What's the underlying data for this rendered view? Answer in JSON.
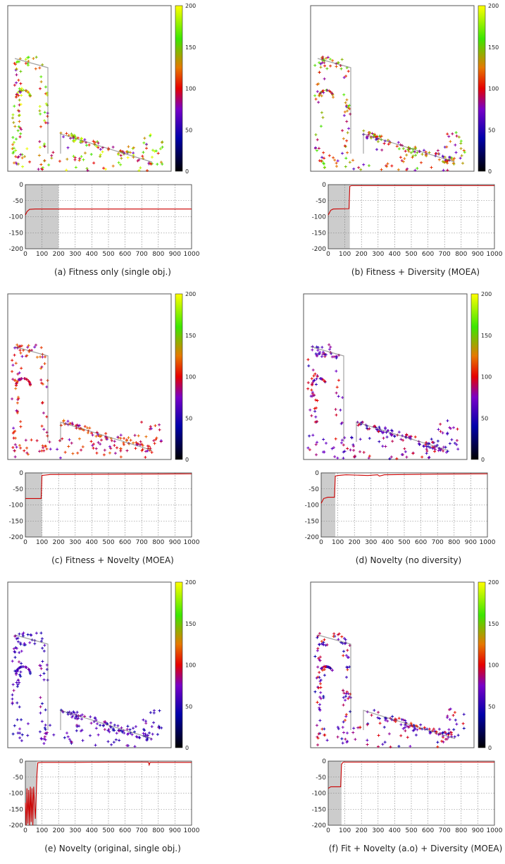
{
  "chart_data": [
    {
      "id": "a",
      "type": "scatter+line",
      "caption": "(a) Fitness only (single obj.)",
      "colorbar": {
        "min": 0,
        "max": 200,
        "ticks": [
          0,
          50,
          100,
          150,
          200
        ]
      },
      "point_color_range": [
        70,
        200
      ],
      "line": {
        "xlim": [
          0,
          1000
        ],
        "ylim": [
          -200,
          0
        ],
        "xticks": [
          0,
          100,
          200,
          300,
          400,
          500,
          600,
          700,
          800,
          900,
          1000
        ],
        "yticks": [
          0,
          -50,
          -100,
          -150,
          -200
        ],
        "shaded_until": 200,
        "points": [
          [
            0,
            -95
          ],
          [
            10,
            -84
          ],
          [
            25,
            -77
          ],
          [
            60,
            -76
          ],
          [
            1000,
            -76
          ]
        ]
      }
    },
    {
      "id": "b",
      "type": "scatter+line",
      "caption": "(b) Fitness + Diversity (MOEA)",
      "colorbar": {
        "min": 0,
        "max": 200,
        "ticks": [
          0,
          50,
          100,
          150,
          200
        ]
      },
      "point_color_range": [
        60,
        170
      ],
      "line": {
        "xlim": [
          0,
          1000
        ],
        "ylim": [
          -200,
          0
        ],
        "xticks": [
          0,
          100,
          200,
          300,
          400,
          500,
          600,
          700,
          800,
          900,
          1000
        ],
        "yticks": [
          0,
          -50,
          -100,
          -150,
          -200
        ],
        "shaded_until": 130,
        "points": [
          [
            0,
            -95
          ],
          [
            15,
            -80
          ],
          [
            30,
            -76
          ],
          [
            125,
            -75
          ],
          [
            130,
            -5
          ],
          [
            140,
            -3
          ],
          [
            1000,
            -3
          ]
        ]
      }
    },
    {
      "id": "c",
      "type": "scatter+line",
      "caption": "(c) Fitness + Novelty (MOEA)",
      "colorbar": {
        "min": 0,
        "max": 200,
        "ticks": [
          0,
          50,
          100,
          150,
          200
        ]
      },
      "point_color_range": [
        70,
        125
      ],
      "line": {
        "xlim": [
          0,
          1000
        ],
        "ylim": [
          -200,
          0
        ],
        "xticks": [
          0,
          100,
          200,
          300,
          400,
          500,
          600,
          700,
          800,
          900,
          1000
        ],
        "yticks": [
          0,
          -50,
          -100,
          -150,
          -200
        ],
        "shaded_until": 100,
        "points": [
          [
            0,
            -80
          ],
          [
            95,
            -80
          ],
          [
            100,
            -8
          ],
          [
            150,
            -5
          ],
          [
            1000,
            -3
          ]
        ]
      }
    },
    {
      "id": "d",
      "type": "scatter+line",
      "caption": "(d) Novelty (no diversity)",
      "colorbar": {
        "min": 0,
        "max": 200,
        "ticks": [
          0,
          50,
          100,
          150,
          200
        ]
      },
      "point_color_range": [
        45,
        105
      ],
      "line": {
        "xlim": [
          0,
          1000
        ],
        "ylim": [
          -200,
          0
        ],
        "xticks": [
          0,
          100,
          200,
          300,
          400,
          500,
          600,
          700,
          800,
          900,
          1000
        ],
        "yticks": [
          0,
          -50,
          -100,
          -150,
          -200
        ],
        "shaded_until": 85,
        "points": [
          [
            0,
            -95
          ],
          [
            15,
            -80
          ],
          [
            40,
            -76
          ],
          [
            80,
            -76
          ],
          [
            85,
            -10
          ],
          [
            100,
            -8
          ],
          [
            150,
            -6
          ],
          [
            280,
            -8
          ],
          [
            340,
            -6
          ],
          [
            350,
            -10
          ],
          [
            380,
            -6
          ],
          [
            500,
            -5
          ],
          [
            700,
            -4
          ],
          [
            1000,
            -3
          ]
        ]
      }
    },
    {
      "id": "e",
      "type": "scatter+line",
      "caption": "(e) Novelty (original, single obj.)",
      "colorbar": {
        "min": 0,
        "max": 200,
        "ticks": [
          0,
          50,
          100,
          150,
          200
        ]
      },
      "point_color_range": [
        40,
        85
      ],
      "line": {
        "xlim": [
          0,
          1000
        ],
        "ylim": [
          -200,
          0
        ],
        "xticks": [
          0,
          100,
          200,
          300,
          400,
          500,
          600,
          700,
          800,
          900,
          1000
        ],
        "yticks": [
          0,
          -50,
          -100,
          -150,
          -200
        ],
        "shaded_until": 70,
        "points": [
          [
            0,
            -130
          ],
          [
            5,
            -200
          ],
          [
            10,
            -85
          ],
          [
            15,
            -195
          ],
          [
            20,
            -90
          ],
          [
            25,
            -200
          ],
          [
            30,
            -80
          ],
          [
            35,
            -190
          ],
          [
            40,
            -85
          ],
          [
            45,
            -200
          ],
          [
            50,
            -80
          ],
          [
            60,
            -180
          ],
          [
            70,
            -40
          ],
          [
            75,
            -5
          ],
          [
            100,
            -4
          ],
          [
            300,
            -4
          ],
          [
            500,
            -3
          ],
          [
            740,
            -3
          ],
          [
            745,
            -12
          ],
          [
            750,
            -4
          ],
          [
            1000,
            -4
          ]
        ]
      }
    },
    {
      "id": "f",
      "type": "scatter+line",
      "caption": "(f) Fit + Novelty (a.o)  + Diversity (MOEA)",
      "colorbar": {
        "min": 0,
        "max": 200,
        "ticks": [
          0,
          50,
          100,
          150,
          200
        ]
      },
      "point_color_range": [
        40,
        110
      ],
      "line": {
        "xlim": [
          0,
          1000
        ],
        "ylim": [
          -200,
          0
        ],
        "xticks": [
          0,
          100,
          200,
          300,
          400,
          500,
          600,
          700,
          800,
          900,
          1000
        ],
        "yticks": [
          0,
          -50,
          -100,
          -150,
          -200
        ],
        "shaded_until": 80,
        "points": [
          [
            0,
            -85
          ],
          [
            15,
            -80
          ],
          [
            75,
            -80
          ],
          [
            80,
            -10
          ],
          [
            90,
            -3
          ],
          [
            1000,
            -3
          ]
        ]
      }
    }
  ]
}
